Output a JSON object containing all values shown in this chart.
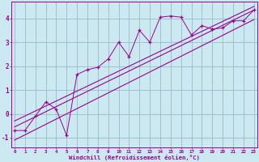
{
  "xlabel": "Windchill (Refroidissement éolien,°C)",
  "bg_color": "#cce8f0",
  "grid_color": "#99bbcc",
  "line_color": "#990099",
  "x_data": [
    0,
    1,
    2,
    3,
    4,
    5,
    6,
    7,
    8,
    9,
    10,
    11,
    12,
    13,
    14,
    15,
    16,
    17,
    18,
    19,
    20,
    21,
    22,
    23
  ],
  "y_scatter": [
    -0.7,
    -0.7,
    -0.1,
    0.5,
    0.2,
    -0.9,
    1.65,
    1.85,
    1.95,
    2.3,
    3.0,
    2.4,
    3.5,
    3.0,
    4.05,
    4.1,
    4.05,
    3.3,
    3.7,
    3.55,
    3.6,
    3.9,
    3.9,
    4.35
  ],
  "line1_y0": -0.55,
  "line1_y1": 4.35,
  "line2_y0": -1.1,
  "line2_y1": 3.95,
  "line3_y0": -0.3,
  "line3_y1": 4.5,
  "xlim": [
    -0.3,
    23.3
  ],
  "ylim": [
    -1.4,
    4.7
  ],
  "xticks": [
    0,
    1,
    2,
    3,
    4,
    5,
    6,
    7,
    8,
    9,
    10,
    11,
    12,
    13,
    14,
    15,
    16,
    17,
    18,
    19,
    20,
    21,
    22,
    23
  ],
  "yticks": [
    -1,
    0,
    1,
    2,
    3,
    4
  ]
}
